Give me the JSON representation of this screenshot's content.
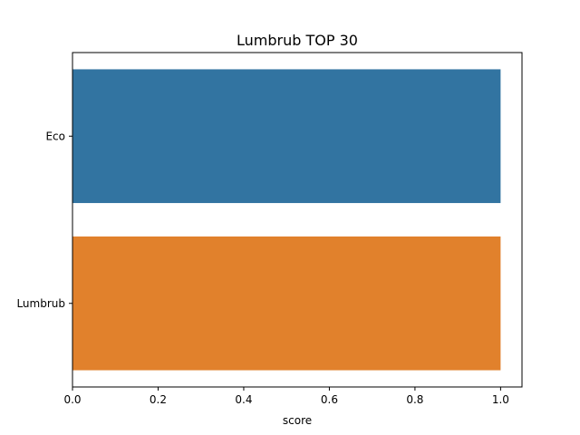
{
  "chart_data": {
    "type": "bar",
    "orientation": "horizontal",
    "title": "Lumbrub TOP 30",
    "xlabel": "score",
    "ylabel": "",
    "categories": [
      "Eco",
      "Lumbrub"
    ],
    "values": [
      1.0,
      1.0
    ],
    "colors": [
      "#3274a1",
      "#e1812c"
    ],
    "xlim": [
      0,
      1.05
    ],
    "xticks": [
      "0.0",
      "0.2",
      "0.4",
      "0.6",
      "0.8",
      "1.0"
    ],
    "grid": false,
    "legend": "none"
  }
}
